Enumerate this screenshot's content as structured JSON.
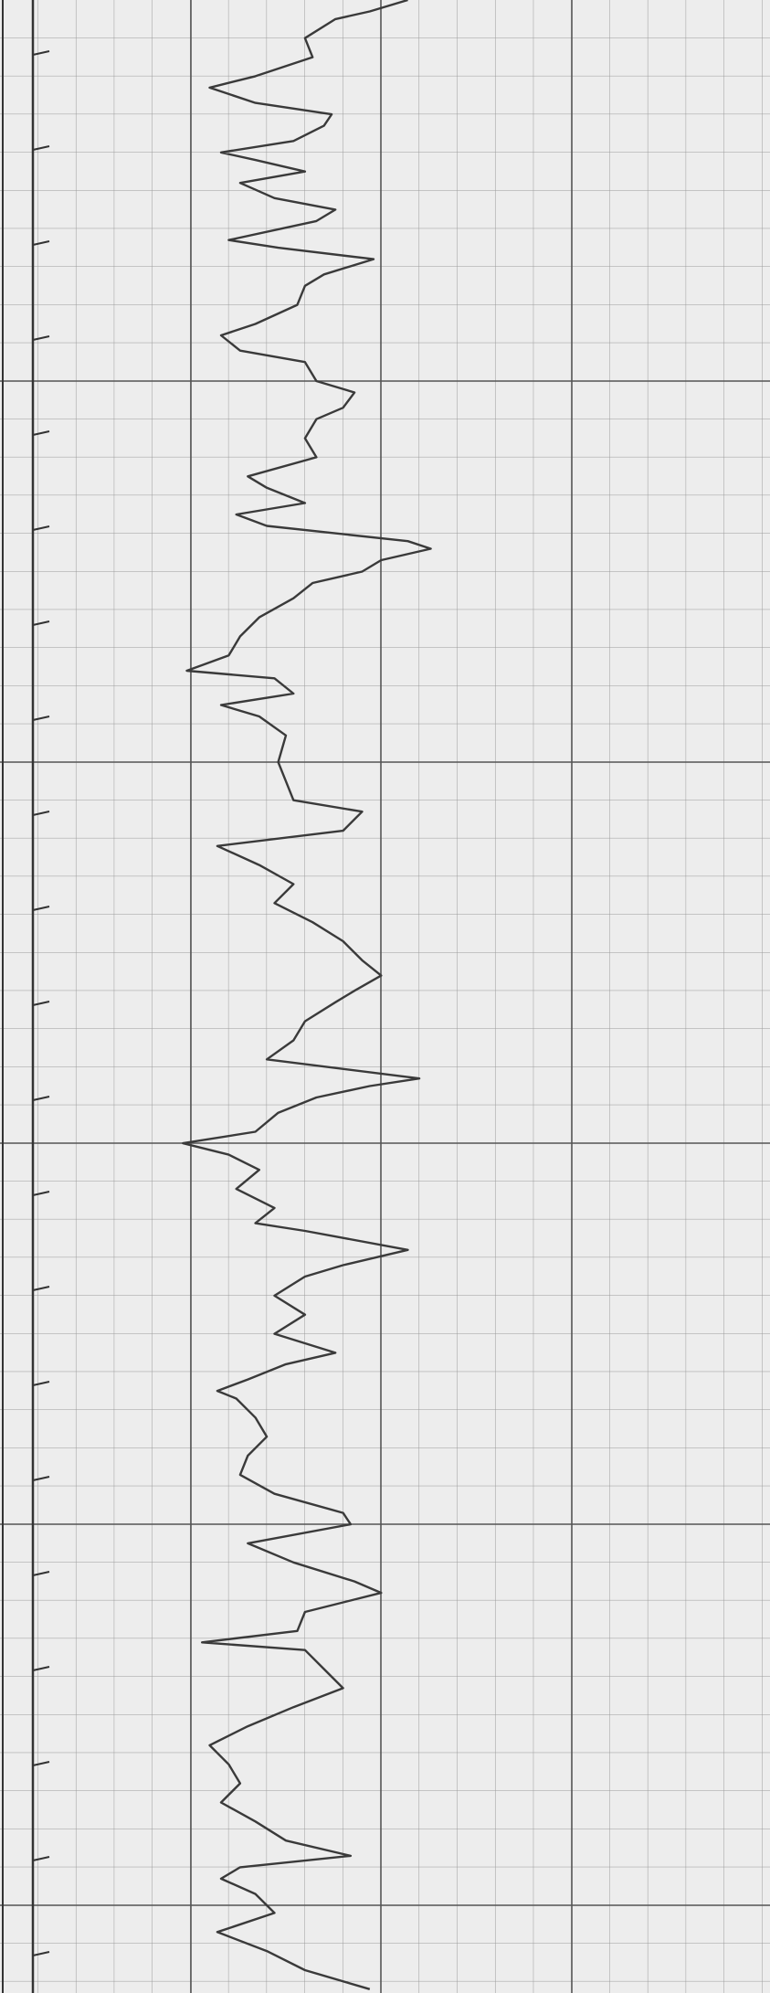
{
  "chart_data": {
    "type": "line",
    "orientation": "vertical",
    "x": [
      0,
      0.3,
      0.5,
      1,
      1.5,
      2,
      2.3,
      2.7,
      3,
      3.3,
      3.7,
      4,
      4.2,
      4.5,
      4.8,
      5.2,
      5.5,
      5.8,
      6.3,
      6.5,
      6.8,
      7.2,
      7.5,
      8,
      8.5,
      8.8,
      9.2,
      9.5,
      10,
      10.3,
      10.7,
      11,
      11.5,
      12,
      12.5,
      12.8,
      13.2,
      13.5,
      13.8,
      14.2,
      14.4,
      14.7,
      15,
      15.3,
      15.7,
      16.2,
      16.7,
      17.2,
      17.6,
      17.8,
      18.2,
      18.5,
      18.8,
      19.3,
      20,
      20.5,
      21,
      21.3,
      21.8,
      22.2,
      22.7,
      23.2,
      23.7,
      24.2,
      24.7,
      25.2,
      25.6,
      26,
      26.3,
      26.8,
      27.3,
      27.8,
      28.3,
      28.5,
      28.8,
      29.2,
      29.7,
      30,
      30.3,
      30.7,
      31.2,
      31.7,
      32.1,
      32.3,
      32.8,
      33.2,
      33.5,
      34,
      34.5,
      35,
      35.5,
      35.8,
      36.2,
      36.5,
      36.7,
      37.2,
      37.7,
      38.2,
      38.7,
      39.2,
      39.7,
      40,
      40.5,
      41,
      41.5,
      41.8,
      42.3,
      42.8,
      43.1,
      43.3,
      43.8,
      44.3,
      44.8,
      45.3,
      45.8,
      46.3,
      46.8,
      47.3,
      47.8,
      48.3,
      48.7,
      49,
      49.3,
      49.7,
      50.2,
      50.7,
      51.2,
      51.7,
      52.2
    ],
    "series": [
      {
        "color": "#3a3a3a",
        "values": [
          10.7,
          9.7,
          8.8,
          8,
          8.2,
          6.7,
          5.5,
          6.7,
          8.7,
          8.5,
          7.7,
          5.8,
          6.7,
          8,
          6.3,
          7.2,
          8.8,
          8.3,
          6,
          7.3,
          9.8,
          8.5,
          8,
          7.8,
          6.7,
          5.8,
          6.3,
          8,
          8.3,
          9.3,
          9,
          8.3,
          8,
          8.3,
          6.5,
          7,
          8,
          6.2,
          7,
          10.7,
          11.3,
          10,
          9.5,
          8.2,
          7.7,
          6.8,
          6.3,
          6,
          4.9,
          7.2,
          7.7,
          5.8,
          6.8,
          7.5,
          7.3,
          7.5,
          7.7,
          9.5,
          9,
          5.7,
          6.8,
          7.7,
          7.2,
          8.2,
          9,
          9.5,
          10,
          9.3,
          8.8,
          8,
          7.7,
          7,
          11,
          9.7,
          8.3,
          7.3,
          6.7,
          4.8,
          6,
          6.8,
          6.2,
          7.2,
          6.7,
          8,
          10.7,
          9,
          8,
          7.2,
          8,
          7.2,
          8.8,
          7.5,
          6.5,
          5.7,
          6.2,
          6.7,
          7,
          6.5,
          6.3,
          7.2,
          9,
          9.2,
          6.5,
          7.7,
          9.3,
          10,
          8,
          7.8,
          5.3,
          8,
          8.5,
          9,
          7.7,
          6.5,
          5.5,
          6,
          6.3,
          5.8,
          6.7,
          7.5,
          9.2,
          6.3,
          5.8,
          6.7,
          7.2,
          5.7,
          7,
          8,
          9.7
        ]
      }
    ],
    "xlim": [
      0,
      52.3
    ],
    "ylim": [
      0,
      20.2
    ],
    "grid": true
  }
}
